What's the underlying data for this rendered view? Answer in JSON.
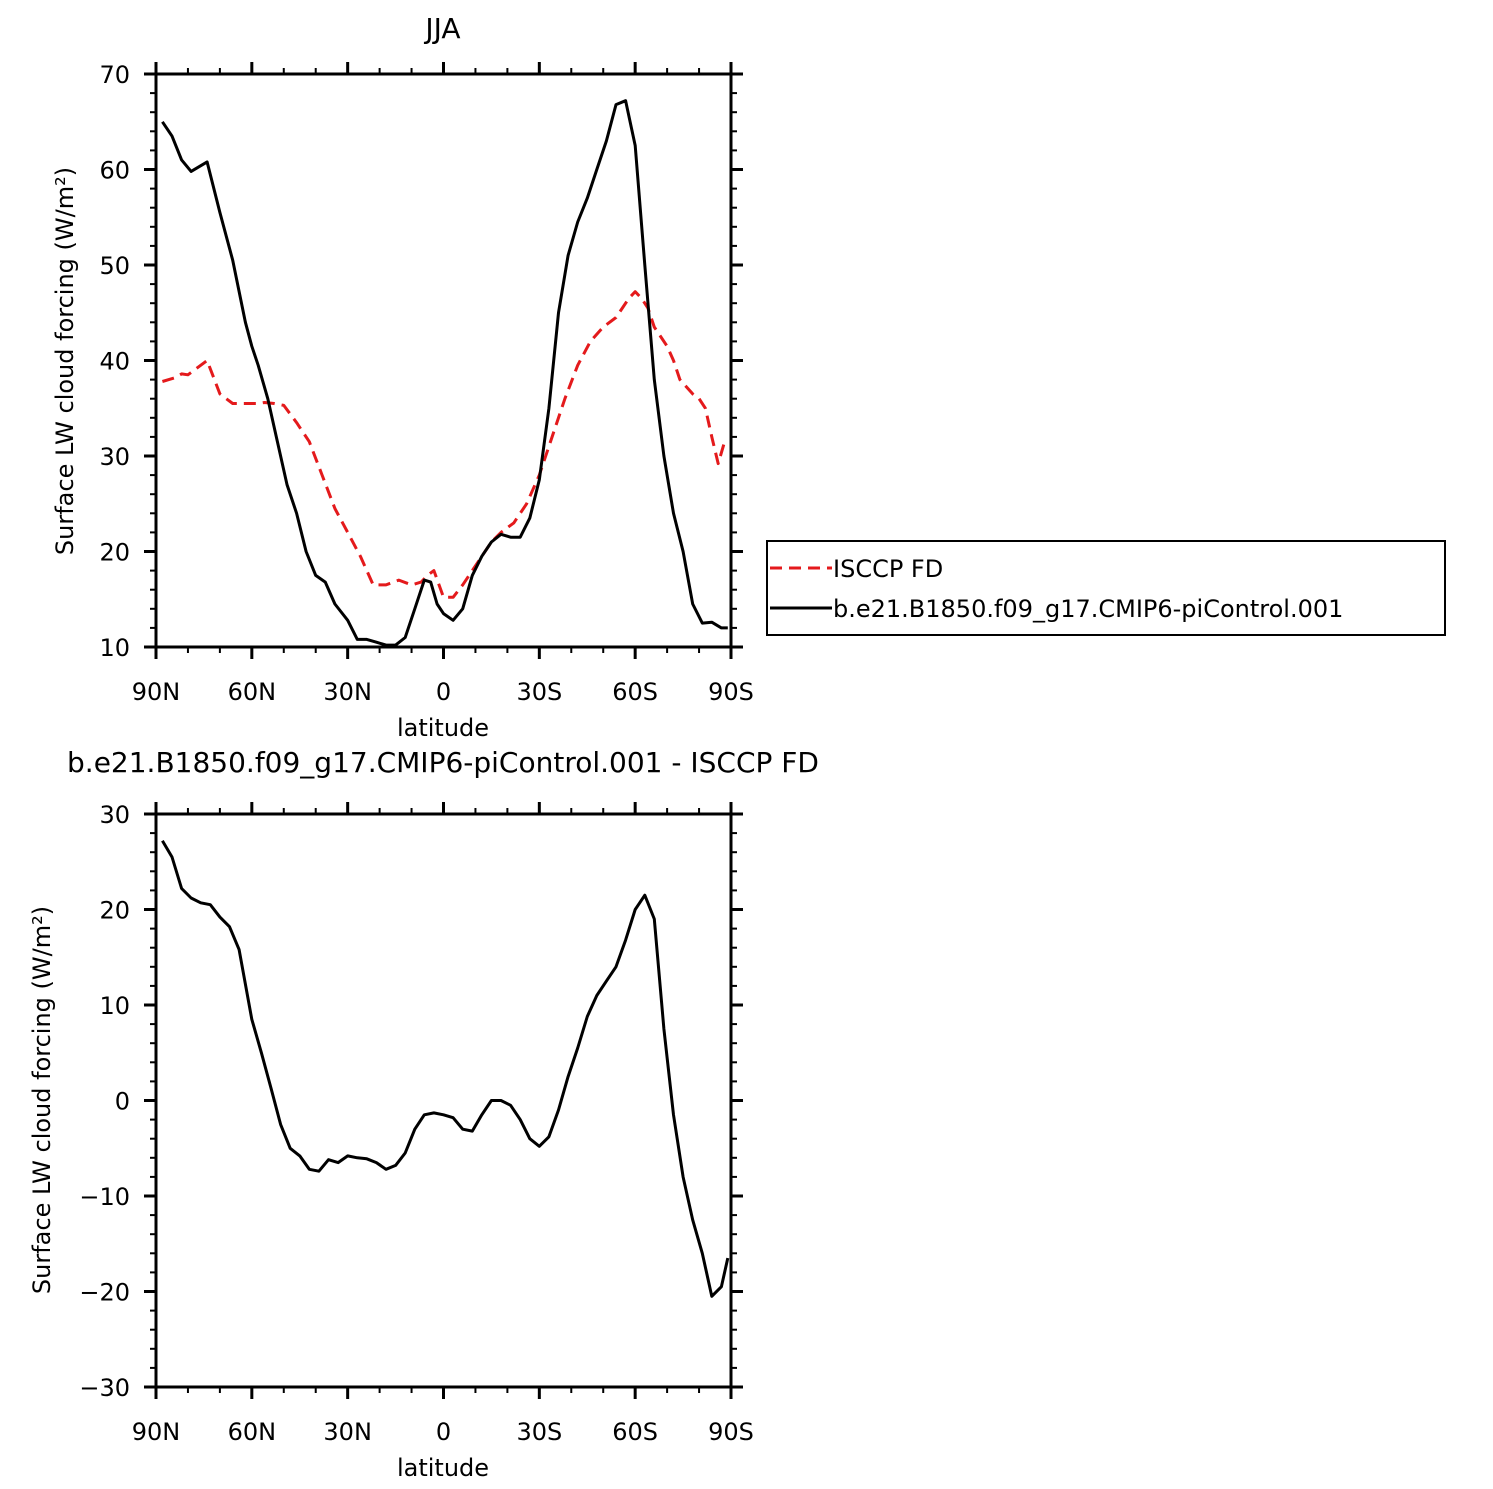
{
  "colors": {
    "isccp": "#e41a1c",
    "model": "#000000",
    "axis": "#000000"
  },
  "chart_data": [
    {
      "type": "line",
      "title": "JJA",
      "xlabel": "latitude",
      "ylabel": "Surface LW cloud forcing (W/m²)",
      "xlim": [
        90,
        -90
      ],
      "ylim": [
        10,
        70
      ],
      "yticks": [
        10,
        20,
        30,
        40,
        50,
        60,
        70
      ],
      "xticks": [
        90,
        60,
        30,
        0,
        -30,
        -60,
        -90
      ],
      "xtick_labels": [
        "90N",
        "60N",
        "30N",
        "0",
        "30S",
        "60S",
        "90S"
      ],
      "ytick_labels": [
        "10",
        "20",
        "30",
        "40",
        "50",
        "60",
        "70"
      ],
      "grid": false,
      "legend_position": "right",
      "series": [
        {
          "name": "ISCCP FD",
          "style": "dashed",
          "x": [
            88,
            84,
            82,
            80,
            78,
            74,
            70,
            66,
            62,
            58,
            56,
            53,
            50,
            46,
            42,
            38,
            34,
            30,
            26,
            22,
            18,
            14,
            10,
            7,
            5,
            3,
            0,
            -3,
            -6,
            -9,
            -12,
            -15,
            -18,
            -22,
            -26,
            -30,
            -34,
            -38,
            -42,
            -46,
            -50,
            -54,
            -56,
            -58,
            -60,
            -62,
            -64,
            -66,
            -68,
            -70,
            -72,
            -74,
            -78,
            -80,
            -82,
            -84,
            -86,
            -88
          ],
          "y": [
            37.8,
            38.2,
            38.6,
            38.5,
            39.0,
            40.0,
            36.5,
            35.5,
            35.5,
            35.5,
            35.6,
            35.5,
            35.3,
            33.5,
            31.5,
            28.0,
            24.5,
            22.0,
            19.5,
            16.5,
            16.5,
            17.0,
            16.5,
            16.8,
            17.5,
            18.0,
            15.2,
            15.2,
            16.5,
            18.0,
            19.5,
            21.0,
            22.0,
            23.0,
            25.0,
            28.0,
            32.0,
            36.0,
            39.5,
            42.0,
            43.5,
            44.5,
            45.5,
            46.5,
            47.2,
            46.5,
            45.5,
            43.5,
            42.5,
            41.5,
            40.0,
            38.0,
            36.5,
            36.0,
            35.0,
            32.0,
            29.2,
            31.5
          ]
        },
        {
          "name": "b.e21.B1850.f09_g17.CMIP6-piControl.001",
          "style": "solid",
          "x": [
            88,
            85,
            82,
            79,
            74,
            70,
            66,
            62,
            60,
            58,
            55,
            52,
            49,
            46,
            43,
            40,
            37,
            34,
            30,
            27,
            24,
            21,
            18,
            15,
            12,
            9,
            6,
            4,
            2,
            0,
            -3,
            -6,
            -9,
            -12,
            -15,
            -18,
            -21,
            -24,
            -27,
            -30,
            -33,
            -36,
            -39,
            -42,
            -45,
            -48,
            -51,
            -54,
            -57,
            -60,
            -63,
            -66,
            -69,
            -72,
            -75,
            -78,
            -81,
            -84,
            -87,
            -89
          ],
          "y": [
            65.0,
            63.5,
            61.0,
            59.8,
            60.8,
            55.5,
            50.5,
            44.0,
            41.5,
            39.5,
            36.0,
            31.5,
            27.0,
            24.0,
            20.0,
            17.5,
            16.8,
            14.5,
            12.8,
            10.8,
            10.8,
            10.5,
            10.2,
            10.2,
            11.0,
            14.0,
            17.0,
            16.8,
            14.5,
            13.5,
            12.8,
            14.0,
            17.5,
            19.5,
            21.0,
            21.8,
            21.5,
            21.5,
            23.5,
            27.5,
            35.0,
            45.0,
            51.0,
            54.5,
            57.0,
            60.0,
            63.0,
            66.8,
            67.2,
            62.5,
            50.0,
            38.0,
            30.0,
            24.0,
            20.0,
            14.5,
            12.5,
            12.6,
            12.0,
            12.0
          ]
        }
      ]
    },
    {
      "type": "line",
      "title": "b.e21.B1850.f09_g17.CMIP6-piControl.001 - ISCCP FD",
      "xlabel": "latitude",
      "ylabel": "Surface LW cloud forcing (W/m²)",
      "xlim": [
        90,
        -90
      ],
      "ylim": [
        -30,
        30
      ],
      "yticks": [
        -30,
        -20,
        -10,
        0,
        10,
        20,
        30
      ],
      "xticks": [
        90,
        60,
        30,
        0,
        -30,
        -60,
        -90
      ],
      "xtick_labels": [
        "90N",
        "60N",
        "30N",
        "0",
        "30S",
        "60S",
        "90S"
      ],
      "ytick_labels": [
        "−30",
        "−20",
        "−10",
        "0",
        "10",
        "20",
        "30"
      ],
      "grid": false,
      "series": [
        {
          "style": "solid",
          "x": [
            88,
            85,
            82,
            79,
            76,
            73,
            70,
            67,
            64,
            60,
            57,
            54,
            51,
            48,
            45,
            42,
            39,
            36,
            33,
            30,
            27,
            24,
            21,
            18,
            15,
            12,
            9,
            6,
            3,
            0,
            -3,
            -6,
            -9,
            -12,
            -15,
            -18,
            -21,
            -24,
            -27,
            -30,
            -33,
            -36,
            -39,
            -42,
            -45,
            -48,
            -51,
            -54,
            -57,
            -60,
            -63,
            -66,
            -69,
            -72,
            -75,
            -78,
            -81,
            -84,
            -87,
            -89
          ],
          "y": [
            27.2,
            25.5,
            22.2,
            21.2,
            20.7,
            20.5,
            19.2,
            18.2,
            15.8,
            8.5,
            5.0,
            1.3,
            -2.5,
            -5.0,
            -5.8,
            -7.2,
            -7.4,
            -6.2,
            -6.5,
            -5.8,
            -6.0,
            -6.1,
            -6.5,
            -7.2,
            -6.8,
            -5.5,
            -3.0,
            -1.5,
            -1.3,
            -1.5,
            -1.8,
            -3.0,
            -3.2,
            -1.5,
            0.0,
            0.0,
            -0.5,
            -2.0,
            -4.0,
            -4.8,
            -3.8,
            -1.0,
            2.5,
            5.5,
            8.8,
            11.0,
            12.5,
            14.0,
            16.8,
            20.0,
            21.5,
            19.0,
            7.5,
            -1.5,
            -8.0,
            -12.5,
            -16.0,
            -20.5,
            -19.5,
            -16.5
          ]
        }
      ]
    }
  ]
}
